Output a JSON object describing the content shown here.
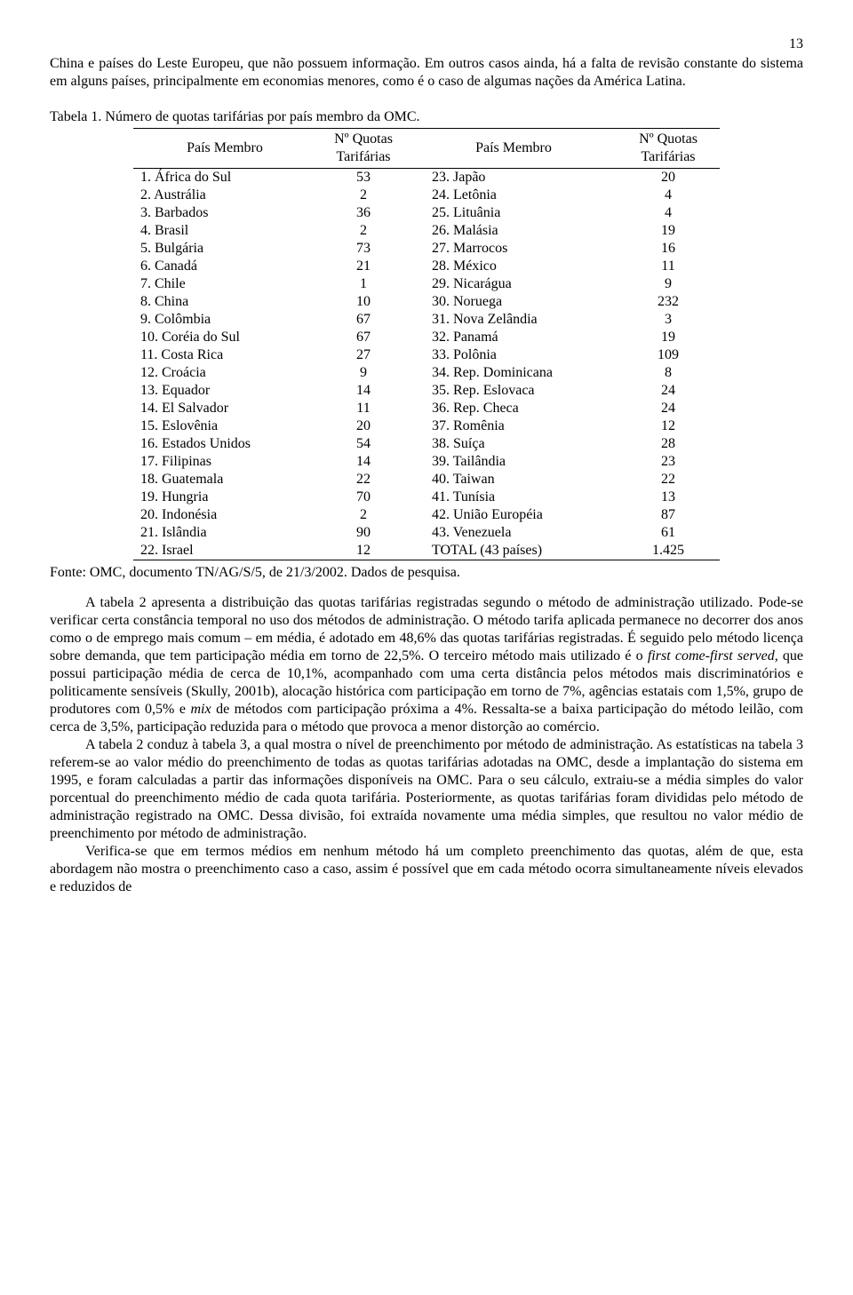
{
  "page_number": "13",
  "intro_paragraph": "China e países do Leste Europeu, que não possuem informação. Em outros casos ainda, há a falta de revisão constante do sistema em alguns países, principalmente em economias menores, como é o caso de algumas nações da América Latina.",
  "table_title": "Tabela 1. Número de quotas tarifárias por país membro da OMC.",
  "headers": {
    "member": "País Membro",
    "quotas_top": "Nº Quotas",
    "quotas_bot": "Tarifárias"
  },
  "rows": [
    {
      "l_c": "1. África do Sul",
      "l_q": "53",
      "r_c": "23. Japão",
      "r_q": "20"
    },
    {
      "l_c": "2. Austrália",
      "l_q": "2",
      "r_c": "24. Letônia",
      "r_q": "4"
    },
    {
      "l_c": "3. Barbados",
      "l_q": "36",
      "r_c": "25. Lituânia",
      "r_q": "4"
    },
    {
      "l_c": "4. Brasil",
      "l_q": "2",
      "r_c": "26. Malásia",
      "r_q": "19"
    },
    {
      "l_c": "5. Bulgária",
      "l_q": "73",
      "r_c": "27. Marrocos",
      "r_q": "16"
    },
    {
      "l_c": "6. Canadá",
      "l_q": "21",
      "r_c": "28. México",
      "r_q": "11"
    },
    {
      "l_c": "7. Chile",
      "l_q": "1",
      "r_c": "29. Nicarágua",
      "r_q": "9"
    },
    {
      "l_c": "8. China",
      "l_q": "10",
      "r_c": "30. Noruega",
      "r_q": "232"
    },
    {
      "l_c": "9. Colômbia",
      "l_q": "67",
      "r_c": "31. Nova Zelândia",
      "r_q": "3"
    },
    {
      "l_c": "10. Coréia do Sul",
      "l_q": "67",
      "r_c": "32. Panamá",
      "r_q": "19"
    },
    {
      "l_c": "11. Costa Rica",
      "l_q": "27",
      "r_c": "33. Polônia",
      "r_q": "109"
    },
    {
      "l_c": "12. Croácia",
      "l_q": "9",
      "r_c": "34. Rep. Dominicana",
      "r_q": "8"
    },
    {
      "l_c": "13. Equador",
      "l_q": "14",
      "r_c": "35. Rep. Eslovaca",
      "r_q": "24"
    },
    {
      "l_c": "14. El Salvador",
      "l_q": "11",
      "r_c": "36. Rep. Checa",
      "r_q": "24"
    },
    {
      "l_c": "15. Eslovênia",
      "l_q": "20",
      "r_c": "37. Romênia",
      "r_q": "12"
    },
    {
      "l_c": "16. Estados Unidos",
      "l_q": "54",
      "r_c": "38. Suíça",
      "r_q": "28"
    },
    {
      "l_c": "17. Filipinas",
      "l_q": "14",
      "r_c": "39. Tailândia",
      "r_q": "23"
    },
    {
      "l_c": "18. Guatemala",
      "l_q": "22",
      "r_c": "40. Taiwan",
      "r_q": "22"
    },
    {
      "l_c": "19. Hungria",
      "l_q": "70",
      "r_c": "41. Tunísia",
      "r_q": "13"
    },
    {
      "l_c": "20. Indonésia",
      "l_q": "2",
      "r_c": "42. União Européia",
      "r_q": "87"
    },
    {
      "l_c": "21. Islândia",
      "l_q": "90",
      "r_c": "43. Venezuela",
      "r_q": "61"
    },
    {
      "l_c": "22. Israel",
      "l_q": "12",
      "r_c": "TOTAL (43 países)",
      "r_q": "1.425"
    }
  ],
  "fonte": "Fonte: OMC, documento TN/AG/S/5, de 21/3/2002. Dados de pesquisa.",
  "para2_a": "A tabela 2 apresenta a distribuição das quotas tarifárias registradas segundo o método de administração utilizado. Pode-se verificar certa constância temporal no uso dos métodos de administração. O método tarifa aplicada permanece no decorrer dos anos como o de emprego mais comum – em média, é adotado em 48,6% das quotas tarifárias registradas. É seguido pelo método licença sobre demanda, que tem participação média em torno de 22,5%. O terceiro método mais utilizado é o ",
  "para2_em": "first come-first served,",
  "para2_b": " que possui participação média de cerca de 10,1%, acompanhado com uma certa distância pelos métodos mais discriminatórios e politicamente sensíveis (Skully, 2001b), alocação histórica com participação em torno de 7%, agências estatais com 1,5%, grupo de produtores com 0,5% e ",
  "para2_em2": "mix",
  "para2_c": " de métodos com participação próxima a 4%. Ressalta-se a baixa participação do método leilão, com cerca de 3,5%, participação reduzida para o método que provoca a menor distorção ao comércio.",
  "para3": "A tabela 2 conduz à tabela 3, a qual mostra o nível de preenchimento por método de administração. As estatísticas na tabela 3 referem-se ao valor médio do preenchimento de todas as quotas tarifárias adotadas na OMC, desde a implantação do sistema em 1995, e foram calculadas a partir das informações disponíveis na OMC. Para o seu cálculo, extraiu-se a média simples do valor porcentual do preenchimento médio de cada quota tarifária. Posteriormente, as quotas tarifárias foram divididas pelo método de administração registrado na OMC. Dessa divisão, foi extraída novamente uma média simples, que resultou no valor médio de preenchimento por método de administração.",
  "para4": "Verifica-se que em termos médios em nenhum método há um completo preenchimento das quotas, além de que, esta abordagem não mostra o preenchimento caso a caso, assim é possível que em cada método ocorra simultaneamente níveis elevados e reduzidos de"
}
